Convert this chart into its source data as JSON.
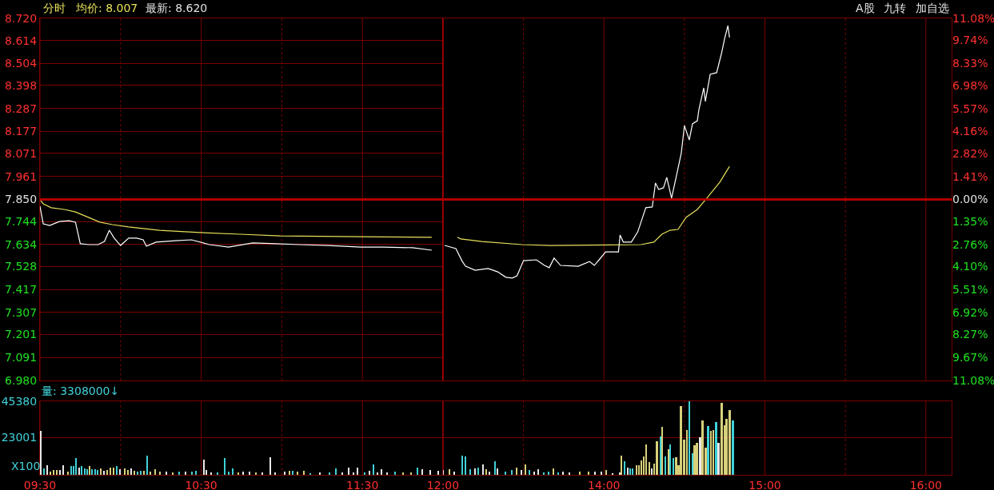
{
  "chart_data": [
    {
      "type": "line",
      "annotations": [
        "分时",
        "均价: 8.007",
        "最新: 8.620",
        "A股",
        "九转",
        "加自选"
      ],
      "xlim": [
        9.5,
        12
      ],
      "ylim": [
        6.98,
        8.72
      ],
      "yticks": [
        {
          "value": 6.98,
          "label": "6.980"
        },
        7.091,
        7.201,
        7.307,
        7.417,
        7.528,
        7.634,
        7.744,
        {
          "value": 7.85,
          "label": "7.850"
        },
        7.961,
        8.071,
        8.177,
        8.287,
        8.398,
        8.504,
        8.614,
        {
          "value": 8.72,
          "label": "8.720"
        }
      ],
      "tick_labels": "y",
      "grid": true,
      "legend": false,
      "ref_lines": [
        {
          "axis": "y",
          "value": 7.85,
          "color": "#b00000"
        },
        {
          "axis": "x",
          "value": 12,
          "color": "#b00000"
        }
      ],
      "series": [
        {
          "color": "#e6e05a",
          "x": [
            9.5,
            9.52,
            9.57,
            9.65,
            9.72,
            9.8,
            9.87,
            9.95,
            10.05,
            10.24,
            10.49,
            10.74,
            10.99,
            11.49,
            11.93
          ],
          "values": [
            7.85,
            7.829,
            7.81,
            7.802,
            7.79,
            7.764,
            7.741,
            7.729,
            7.718,
            7.702,
            7.691,
            7.683,
            7.675,
            7.671,
            7.668
          ]
        },
        {
          "color": "#ffffff",
          "x": [
            9.5,
            9.52,
            9.56,
            9.62,
            9.68,
            9.72,
            9.75,
            9.8,
            9.86,
            9.9,
            9.93,
            9.96,
            10.0,
            10.05,
            10.1,
            10.14,
            10.16,
            10.22,
            10.34,
            10.44,
            10.55,
            10.67,
            10.82,
            10.96,
            11.11,
            11.29,
            11.49,
            11.63,
            11.81,
            11.93
          ],
          "values": [
            7.817,
            7.733,
            7.725,
            7.744,
            7.748,
            7.741,
            7.637,
            7.633,
            7.633,
            7.648,
            7.702,
            7.664,
            7.629,
            7.664,
            7.664,
            7.656,
            7.625,
            7.645,
            7.652,
            7.656,
            7.633,
            7.621,
            7.641,
            7.637,
            7.633,
            7.629,
            7.621,
            7.621,
            7.618,
            7.606
          ]
        }
      ]
    },
    {
      "type": "line",
      "xlim": [
        13,
        16.16
      ],
      "ylim": [
        6.98,
        8.72
      ],
      "y2lim": [
        -11.08,
        11.08
      ],
      "y2ticks": [
        {
          "value": -11.08,
          "label": "11.08%"
        },
        {
          "value": -9.67,
          "label": "9.67%"
        },
        {
          "value": -8.27,
          "label": "8.27%"
        },
        {
          "value": -6.92,
          "label": "6.92%"
        },
        {
          "value": -5.51,
          "label": "5.51%"
        },
        {
          "value": -4.1,
          "label": "4.10%"
        },
        {
          "value": -2.76,
          "label": "2.76%"
        },
        {
          "value": -1.35,
          "label": "1.35%"
        },
        {
          "value": 0,
          "label": "0.00%"
        },
        {
          "value": 1.41,
          "label": "1.41%"
        },
        {
          "value": 2.82,
          "label": "2.82%"
        },
        {
          "value": 4.16,
          "label": "4.16%"
        },
        {
          "value": 5.57,
          "label": "5.57%"
        },
        {
          "value": 6.98,
          "label": "6.98%"
        },
        {
          "value": 8.33,
          "label": "8.33%"
        },
        {
          "value": 9.74,
          "label": "9.74%"
        },
        {
          "value": 11.08,
          "label": "11.08%"
        }
      ],
      "tick_labels": false,
      "grid": true,
      "legend": false,
      "ref_lines": [
        {
          "axis": "y",
          "value": 7.85,
          "color": "#b00000"
        }
      ],
      "series": [
        {
          "color": "#e6e05a",
          "x": [
            13.09,
            13.11,
            13.24,
            13.49,
            13.67,
            14.23,
            14.31,
            14.36,
            14.41,
            14.46,
            14.51,
            14.58,
            14.63,
            14.72,
            14.78
          ],
          "values": [
            7.668,
            7.66,
            7.648,
            7.633,
            7.629,
            7.633,
            7.645,
            7.683,
            7.702,
            7.706,
            7.764,
            7.802,
            7.848,
            7.933,
            8.009
          ]
        },
        {
          "color": "#ffffff",
          "x": [
            13.01,
            13.08,
            13.12,
            13.14,
            13.2,
            13.28,
            13.34,
            13.39,
            13.43,
            13.46,
            13.5,
            13.58,
            13.63,
            13.66,
            13.69,
            13.73,
            13.84,
            13.91,
            13.94,
            13.97,
            14.01,
            14.09,
            14.1,
            14.12,
            14.17,
            14.21,
            14.24,
            14.26,
            14.3,
            14.32,
            14.34,
            14.37,
            14.39,
            14.42,
            14.45,
            14.48,
            14.5,
            14.53,
            14.55,
            14.58,
            14.59,
            14.62,
            14.63,
            14.66,
            14.7,
            14.73,
            14.75,
            14.77,
            14.78
          ],
          "values": [
            7.629,
            7.614,
            7.552,
            7.529,
            7.51,
            7.518,
            7.502,
            7.476,
            7.472,
            7.483,
            7.556,
            7.56,
            7.533,
            7.522,
            7.568,
            7.533,
            7.529,
            7.552,
            7.533,
            7.56,
            7.598,
            7.598,
            7.679,
            7.645,
            7.645,
            7.694,
            7.764,
            7.81,
            7.814,
            7.929,
            7.898,
            7.906,
            7.956,
            7.856,
            7.963,
            8.071,
            8.205,
            8.136,
            8.213,
            8.228,
            8.282,
            8.386,
            8.321,
            8.451,
            8.459,
            8.551,
            8.624,
            8.685,
            8.628
          ]
        }
      ]
    },
    {
      "type": "bar",
      "annotations": [
        "量: 3308000↓",
        "X100"
      ],
      "xlim": [
        9.5,
        12
      ],
      "xticks": [
        {
          "value": 9.5,
          "label": "09:30"
        },
        {
          "value": 10,
          "label": null
        },
        {
          "value": 10.5,
          "label": "10:30"
        },
        {
          "value": 11,
          "label": null
        },
        {
          "value": 11.5,
          "label": "11:30"
        },
        {
          "value": 12,
          "label": "12:00"
        }
      ],
      "ylim": [
        0,
        45380
      ],
      "yticks": [
        23001,
        45380
      ],
      "grid": true,
      "legend": false,
      "series": [
        {
          "x": [
            9.505,
            9.525,
            9.545,
            9.565,
            9.584,
            9.604,
            9.624,
            9.644,
            9.674,
            9.694,
            9.708,
            9.723,
            9.743,
            9.758,
            9.778,
            9.793,
            9.808,
            9.823,
            9.842,
            9.857,
            9.877,
            9.897,
            9.917,
            9.937,
            9.957,
            9.976,
            9.996,
            10.026,
            10.046,
            10.066,
            10.086,
            10.105,
            10.125,
            10.145,
            10.165,
            10.185,
            10.215,
            10.244,
            10.284,
            10.324,
            10.364,
            10.403,
            10.443,
            10.468,
            10.517,
            10.532,
            10.562,
            10.602,
            10.646,
            10.671,
            10.696,
            10.731,
            10.761,
            10.8,
            10.84,
            10.88,
            10.929,
            10.959,
            11.019,
            11.048,
            11.068,
            11.098,
            11.138,
            11.177,
            11.237,
            11.297,
            11.336,
            11.376,
            11.416,
            11.445,
            11.47,
            11.515,
            11.545,
            11.57,
            11.594,
            11.619,
            11.654,
            11.704,
            11.753,
            11.803,
            11.843,
            11.872,
            11.922,
            11.971
          ],
          "values": [
            27000,
            3900,
            5900,
            2000,
            3000,
            3000,
            3000,
            5900,
            2000,
            5400,
            5400,
            10300,
            4400,
            5400,
            3900,
            3400,
            5400,
            3400,
            3400,
            3000,
            3900,
            2500,
            3000,
            4400,
            4400,
            5400,
            3400,
            3900,
            3000,
            3900,
            2500,
            2000,
            2500,
            2500,
            11800,
            2000,
            3400,
            2000,
            2000,
            1500,
            2000,
            2000,
            2000,
            2500,
            9300,
            3000,
            1500,
            1500,
            10300,
            2000,
            3900,
            1500,
            2000,
            2000,
            1500,
            1500,
            10800,
            1500,
            2000,
            2500,
            2500,
            2000,
            2500,
            1000,
            1500,
            1500,
            3900,
            1500,
            4400,
            1500,
            4400,
            1500,
            2500,
            6400,
            1500,
            3400,
            1500,
            2000,
            1500,
            1500,
            4400,
            3400,
            3000,
            2500
          ],
          "colors": [
            "#e8e8e8",
            "#40d0d8",
            "#e8e8e8",
            "#d8d07a",
            "#d8d07a",
            "#d8d07a",
            "#e8e8e8",
            "#e8e8e8",
            "#d8d07a",
            "#40d0d8",
            "#40d0d8",
            "#40d0d8",
            "#e8e8e8",
            "#40d0d8",
            "#40d0d8",
            "#40d0d8",
            "#d8d07a",
            "#40d0d8",
            "#40d0d8",
            "#40d0d8",
            "#d8d07a",
            "#e8e8e8",
            "#d8d07a",
            "#d8d07a",
            "#d8d07a",
            "#40d0d8",
            "#e8e8e8",
            "#d8d07a",
            "#d8d07a",
            "#e8e8e8",
            "#d8d07a",
            "#40d0d8",
            "#40d0d8",
            "#d8d07a",
            "#40d0d8",
            "#d8d07a",
            "#d8d07a",
            "#d8d07a",
            "#e8e8e8",
            "#d8d07a",
            "#40d0d8",
            "#e8e8e8",
            "#40d0d8",
            "#40d0d8",
            "#e8e8e8",
            "#e8e8e8",
            "#e8e8e8",
            "#40d0d8",
            "#40d0d8",
            "#40d0d8",
            "#40d0d8",
            "#d8d07a",
            "#e8e8e8",
            "#e8e8e8",
            "#d8d07a",
            "#e8e8e8",
            "#e8e8e8",
            "#e8e8e8",
            "#e8e8e8",
            "#d8d07a",
            "#40d0d8",
            "#d8d07a",
            "#d8d07a",
            "#40d0d8",
            "#e8e8e8",
            "#40d0d8",
            "#40d0d8",
            "#e8e8e8",
            "#e8e8e8",
            "#e8e8e8",
            "#e8e8e8",
            "#40d0d8",
            "#e8e8e8",
            "#40d0d8",
            "#e8e8e8",
            "#e8e8e8",
            "#e8e8e8",
            "#40d0d8",
            "#d8d07a",
            "#d8d07a",
            "#40d0d8",
            "#e8e8e8",
            "#e8e8e8",
            "#e8e8e8"
          ]
        }
      ]
    },
    {
      "type": "bar",
      "xlim": [
        13,
        16.16
      ],
      "xticks": [
        {
          "value": 13.5,
          "label": null
        },
        {
          "value": 14,
          "label": "14:00"
        },
        {
          "value": 14.5,
          "label": null
        },
        {
          "value": 15,
          "label": "15:00"
        },
        {
          "value": 15.5,
          "label": null
        },
        {
          "value": 16,
          "label": "16:00"
        }
      ],
      "ylim": [
        0,
        45380
      ],
      "yticks": [
        {
          "value": 23001,
          "label": null
        },
        {
          "value": 45380,
          "label": null
        }
      ],
      "tick_labels": "x",
      "grid": true,
      "legend": false,
      "series": [
        {
          "x": [
            13.001,
            13.041,
            13.071,
            13.12,
            13.14,
            13.17,
            13.2,
            13.22,
            13.249,
            13.269,
            13.289,
            13.324,
            13.339,
            13.389,
            13.428,
            13.458,
            13.488,
            13.513,
            13.537,
            13.567,
            13.592,
            13.627,
            13.656,
            13.686,
            13.716,
            13.746,
            13.786,
            13.85,
            13.905,
            13.944,
            13.984,
            14.014,
            14.053,
            14.098,
            14.108,
            14.128,
            14.148,
            14.163,
            14.178,
            14.202,
            14.217,
            14.232,
            14.247,
            14.262,
            14.282,
            14.297,
            14.312,
            14.331,
            14.351,
            14.361,
            14.381,
            14.401,
            14.411,
            14.431,
            14.45,
            14.465,
            14.48,
            14.5,
            14.515,
            14.53,
            14.55,
            14.564,
            14.579,
            14.599,
            14.614,
            14.634,
            14.649,
            14.664,
            14.679,
            14.698,
            14.713,
            14.733,
            14.753,
            14.763,
            14.783,
            14.803
          ],
          "values": [
            3000,
            3400,
            2000,
            11800,
            11300,
            3400,
            3900,
            4400,
            6400,
            3400,
            2000,
            8400,
            3900,
            2000,
            3000,
            4400,
            3000,
            6400,
            3000,
            2000,
            3400,
            1500,
            2000,
            3900,
            1500,
            2000,
            1500,
            2000,
            2000,
            2000,
            2000,
            3000,
            1000,
            1500,
            11800,
            8400,
            4400,
            3900,
            3900,
            5900,
            5900,
            8900,
            11300,
            18700,
            7900,
            3900,
            6900,
            20700,
            23600,
            29500,
            11300,
            15700,
            18700,
            10300,
            10800,
            5900,
            42300,
            21600,
            27600,
            45300,
            13300,
            18200,
            19700,
            23100,
            33500,
            16700,
            30000,
            27100,
            27600,
            32500,
            19700,
            44300,
            30500,
            34400,
            39900,
            33500
          ],
          "colors": [
            "#e8e8e8",
            "#d8d07a",
            "#e8e8e8",
            "#40d0d8",
            "#40d0d8",
            "#40d0d8",
            "#e8e8e8",
            "#40d0d8",
            "#e8e8e8",
            "#d8d07a",
            "#e8e8e8",
            "#40d0d8",
            "#e8e8e8",
            "#40d0d8",
            "#40d0d8",
            "#d8d07a",
            "#e8e8e8",
            "#d8d07a",
            "#40d0d8",
            "#e8e8e8",
            "#e8e8e8",
            "#40d0d8",
            "#40d0d8",
            "#d8d07a",
            "#40d0d8",
            "#e8e8e8",
            "#e8e8e8",
            "#d8d07a",
            "#d8d07a",
            "#e8e8e8",
            "#e8e8e8",
            "#d8d07a",
            "#e8e8e8",
            "#e8e8e8",
            "#d8d07a",
            "#40d0d8",
            "#e8e8e8",
            "#40d0d8",
            "#40d0d8",
            "#d8d07a",
            "#d8d07a",
            "#d8d07a",
            "#d8d07a",
            "#d8d07a",
            "#d8d07a",
            "#e8e8e8",
            "#d8d07a",
            "#d8d07a",
            "#40d0d8",
            "#d8d07a",
            "#40d0d8",
            "#d8d07a",
            "#40d0d8",
            "#40d0d8",
            "#d8d07a",
            "#d8d07a",
            "#d8d07a",
            "#d8d07a",
            "#d8d07a",
            "#40d0d8",
            "#40d0d8",
            "#d8d07a",
            "#d8d07a",
            "#e8e8e8",
            "#d8d07a",
            "#d8d07a",
            "#40d0d8",
            "#d8d07a",
            "#d8d07a",
            "#40d0d8",
            "#e8e8e8",
            "#d8d07a",
            "#d8d07a",
            "#d8d07a",
            "#d8d07a",
            "#40d0d8"
          ]
        }
      ]
    }
  ]
}
